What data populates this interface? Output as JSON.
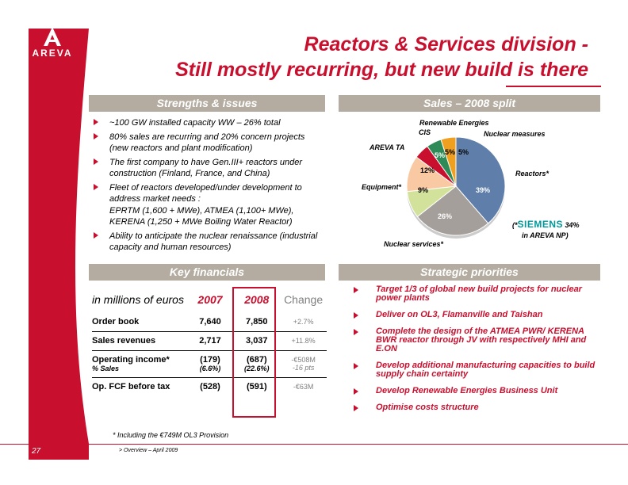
{
  "logo": {
    "text": "AREVA"
  },
  "title": {
    "line1": "Reactors & Services division -",
    "line2": "Still mostly recurring, but new build is there"
  },
  "strengths": {
    "header": "Strengths & issues",
    "items": [
      "~100 GW installed capacity WW – 26% total",
      "80% sales are recurring and 20% concern projects (new reactors and plant modification)",
      "The first company to have Gen.III+ reactors under construction (Finland, France, and China)",
      "Fleet of reactors developed/under development to address market needs :",
      "EPRTM (1,600 + MWe), ATMEA (1,100+ MWe), KERENA (1,250 + MWe Boiling Water Reactor)",
      "Ability to anticipate the nuclear renaissance (industrial capacity and human resources)"
    ]
  },
  "sales": {
    "header": "Sales – 2008 split",
    "labels": {
      "renewable": "Renewable Energies",
      "cis": "CIS",
      "nuclear_measures": "Nuclear measures",
      "areva_ta": "AREVA TA",
      "reactors": "Reactors*",
      "equipment": "Equipment*",
      "nuclear_services": "Nuclear services*",
      "siemens_prefix": "(*",
      "siemens": "SIEMENS",
      "siemens_pct": "34%",
      "siemens_suffix": "in AREVA NP)"
    },
    "pct": {
      "reactors": "39%",
      "nuclear_services": "26%",
      "equipment": "9%",
      "areva_ta": "12%",
      "cis": "5%",
      "renewable": "5%",
      "nuclear_measures": "5%"
    },
    "colors": {
      "reactors": "#5f7faa",
      "nuclear_services": "#a59f9b",
      "equipment": "#d3e29b",
      "areva_ta": "#f8c9a2",
      "cis": "#c8102e",
      "renewable": "#2e8b57",
      "nuclear_measures": "#f0a020"
    }
  },
  "chart_data": {
    "type": "pie",
    "title": "Sales – 2008 split",
    "categories": [
      "Reactors*",
      "Nuclear services*",
      "Equipment*",
      "AREVA TA",
      "CIS",
      "Renewable Energies",
      "Nuclear measures"
    ],
    "values": [
      39,
      26,
      9,
      12,
      5,
      5,
      5
    ]
  },
  "financials": {
    "header": "Key financials",
    "unit_label": "in millions of euros",
    "col_2007": "2007",
    "col_2008": "2008",
    "col_change": "Change",
    "rows": [
      {
        "label": "Order book",
        "v2007": "7,640",
        "v2008": "7,850",
        "change": "+2.7%"
      },
      {
        "label": "Sales revenues",
        "v2007": "2,717",
        "v2008": "3,037",
        "change": "+11.8%"
      },
      {
        "label": "Operating income*",
        "v2007": "(179)",
        "v2008": "(687)",
        "change": "-€508M",
        "sub_label": "% Sales",
        "sub2007": "(6.6%)",
        "sub2008": "(22.6%)",
        "sub_change": "-16 pts"
      },
      {
        "label": "Op. FCF before tax",
        "v2007": "(528)",
        "v2008": "(591)",
        "change": "-€63M"
      }
    ],
    "footnote": "* Including the €749M OL3 Provision"
  },
  "priorities": {
    "header": "Strategic priorities",
    "items": [
      "Target 1/3 of global new build projects for nuclear power plants",
      "Deliver on OL3, Flamanville and Taishan",
      "Complete the design of the ATMEA PWR/ KERENA BWR reactor through JV with respectively MHI and E.ON",
      "Develop additional manufacturing capacities to build supply chain certainty",
      "Develop Renewable Energies Business Unit",
      "Optimise costs structure"
    ]
  },
  "footer": {
    "page": "27",
    "text": "> Overview – April 2009"
  }
}
